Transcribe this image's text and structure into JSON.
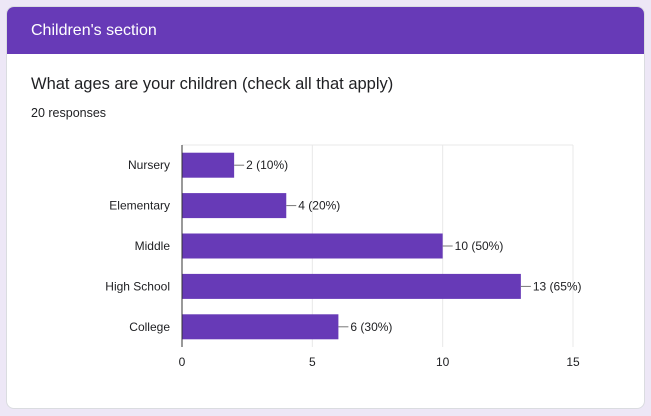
{
  "section": {
    "title": "Children's section"
  },
  "question": {
    "text": "What ages are your children (check all that apply)",
    "responses": "20 responses"
  },
  "chart_data": {
    "type": "bar",
    "orientation": "horizontal",
    "categories": [
      "Nursery",
      "Elementary",
      "Middle",
      "High School",
      "College"
    ],
    "values": [
      2,
      4,
      10,
      13,
      6
    ],
    "data_labels": [
      "2 (10%)",
      "4 (20%)",
      "10 (50%)",
      "13 (65%)",
      "6 (30%)"
    ],
    "x_ticks": [
      "0",
      "5",
      "10",
      "15"
    ],
    "xlim": [
      0,
      15
    ],
    "grid": true,
    "bar_color": "#673ab7",
    "title": "",
    "xlabel": "",
    "ylabel": ""
  },
  "colors": {
    "accent": "#673ab7",
    "background": "#ede7f6"
  }
}
